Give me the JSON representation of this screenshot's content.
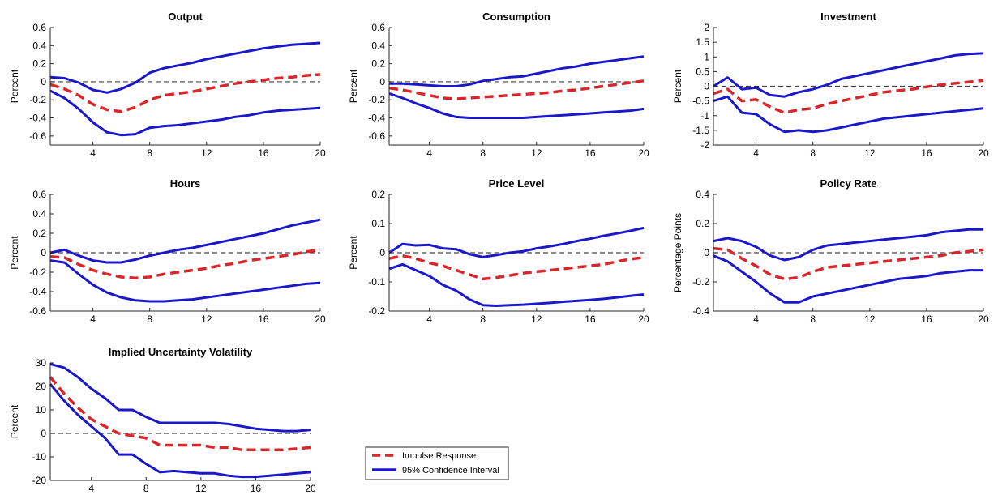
{
  "legend": {
    "impulse_label": "Impulse Response",
    "ci_label": "95% Confidence Interval"
  },
  "colors": {
    "impulse": "#d9262b",
    "ci": "#1a18c8",
    "zero": "#444444",
    "axis": "#262626"
  },
  "chart_data": [
    {
      "type": "line",
      "title": "Output",
      "ylabel": "Percent",
      "xlim": [
        1,
        20
      ],
      "ylim": [
        -0.7,
        0.6
      ],
      "yticks": [
        -0.6,
        -0.4,
        -0.2,
        0,
        0.2,
        0.4,
        0.6
      ],
      "xticks": [
        4,
        8,
        12,
        16,
        20
      ],
      "x": [
        1,
        2,
        3,
        4,
        5,
        6,
        7,
        8,
        9,
        10,
        11,
        12,
        13,
        14,
        15,
        16,
        17,
        18,
        19,
        20
      ],
      "series": [
        {
          "name": "Impulse Response",
          "role": "impulse",
          "values": [
            -0.03,
            -0.08,
            -0.15,
            -0.25,
            -0.31,
            -0.33,
            -0.28,
            -0.2,
            -0.15,
            -0.13,
            -0.11,
            -0.08,
            -0.05,
            -0.02,
            0.0,
            0.02,
            0.04,
            0.05,
            0.07,
            0.08
          ]
        },
        {
          "name": "95% Confidence Interval",
          "role": "ci",
          "values": [
            0.05,
            0.04,
            -0.01,
            -0.09,
            -0.12,
            -0.08,
            -0.01,
            0.1,
            0.15,
            0.18,
            0.21,
            0.25,
            0.28,
            0.31,
            0.34,
            0.37,
            0.39,
            0.41,
            0.42,
            0.43
          ]
        },
        {
          "name": "95% Confidence Interval",
          "role": "ci",
          "values": [
            -0.1,
            -0.18,
            -0.3,
            -0.45,
            -0.56,
            -0.59,
            -0.58,
            -0.51,
            -0.49,
            -0.48,
            -0.46,
            -0.44,
            -0.42,
            -0.39,
            -0.37,
            -0.34,
            -0.32,
            -0.31,
            -0.3,
            -0.29
          ]
        }
      ]
    },
    {
      "type": "line",
      "title": "Consumption",
      "ylabel": "Percent",
      "xlim": [
        1,
        20
      ],
      "ylim": [
        -0.7,
        0.6
      ],
      "yticks": [
        -0.6,
        -0.4,
        -0.2,
        0,
        0.2,
        0.4,
        0.6
      ],
      "xticks": [
        4,
        8,
        12,
        16,
        20
      ],
      "x": [
        1,
        2,
        3,
        4,
        5,
        6,
        7,
        8,
        9,
        10,
        11,
        12,
        13,
        14,
        15,
        16,
        17,
        18,
        19,
        20
      ],
      "series": [
        {
          "name": "Impulse Response",
          "role": "impulse",
          "values": [
            -0.07,
            -0.09,
            -0.12,
            -0.15,
            -0.18,
            -0.19,
            -0.18,
            -0.17,
            -0.16,
            -0.15,
            -0.14,
            -0.13,
            -0.12,
            -0.1,
            -0.09,
            -0.07,
            -0.05,
            -0.03,
            -0.01,
            0.01
          ]
        },
        {
          "name": "95% Confidence Interval",
          "role": "ci",
          "values": [
            -0.02,
            -0.02,
            -0.03,
            -0.04,
            -0.05,
            -0.05,
            -0.03,
            0.01,
            0.03,
            0.05,
            0.06,
            0.09,
            0.12,
            0.15,
            0.17,
            0.2,
            0.22,
            0.24,
            0.26,
            0.28
          ]
        },
        {
          "name": "95% Confidence Interval",
          "role": "ci",
          "values": [
            -0.13,
            -0.18,
            -0.24,
            -0.29,
            -0.35,
            -0.39,
            -0.4,
            -0.4,
            -0.4,
            -0.4,
            -0.4,
            -0.39,
            -0.38,
            -0.37,
            -0.36,
            -0.35,
            -0.34,
            -0.33,
            -0.32,
            -0.3
          ]
        }
      ]
    },
    {
      "type": "line",
      "title": "Investment",
      "ylabel": "Percent",
      "xlim": [
        1,
        20
      ],
      "ylim": [
        -2,
        2
      ],
      "yticks": [
        -2,
        -1.5,
        -1,
        -0.5,
        0,
        0.5,
        1,
        1.5,
        2
      ],
      "xticks": [
        4,
        8,
        12,
        16,
        20
      ],
      "x": [
        1,
        2,
        3,
        4,
        5,
        6,
        7,
        8,
        9,
        10,
        11,
        12,
        13,
        14,
        15,
        16,
        17,
        18,
        19,
        20
      ],
      "series": [
        {
          "name": "Impulse Response",
          "role": "impulse",
          "values": [
            -0.25,
            -0.1,
            -0.5,
            -0.45,
            -0.7,
            -0.9,
            -0.8,
            -0.75,
            -0.6,
            -0.5,
            -0.4,
            -0.3,
            -0.2,
            -0.15,
            -0.1,
            -0.02,
            0.05,
            0.1,
            0.15,
            0.2
          ]
        },
        {
          "name": "95% Confidence Interval",
          "role": "ci",
          "values": [
            0.0,
            0.3,
            -0.1,
            -0.05,
            -0.3,
            -0.35,
            -0.2,
            -0.1,
            0.05,
            0.25,
            0.35,
            0.45,
            0.55,
            0.65,
            0.75,
            0.85,
            0.95,
            1.05,
            1.1,
            1.12
          ]
        },
        {
          "name": "95% Confidence Interval",
          "role": "ci",
          "values": [
            -0.5,
            -0.35,
            -0.9,
            -0.95,
            -1.3,
            -1.55,
            -1.5,
            -1.55,
            -1.5,
            -1.4,
            -1.3,
            -1.2,
            -1.1,
            -1.05,
            -1.0,
            -0.95,
            -0.9,
            -0.85,
            -0.8,
            -0.75
          ]
        }
      ]
    },
    {
      "type": "line",
      "title": "Hours",
      "ylabel": "Percent",
      "xlim": [
        1,
        20
      ],
      "ylim": [
        -0.6,
        0.6
      ],
      "yticks": [
        -0.6,
        -0.4,
        -0.2,
        0,
        0.2,
        0.4,
        0.6
      ],
      "xticks": [
        4,
        8,
        12,
        16,
        20
      ],
      "x": [
        1,
        2,
        3,
        4,
        5,
        6,
        7,
        8,
        9,
        10,
        11,
        12,
        13,
        14,
        15,
        16,
        17,
        18,
        19,
        20
      ],
      "series": [
        {
          "name": "Impulse Response",
          "role": "impulse",
          "values": [
            -0.04,
            -0.05,
            -0.12,
            -0.18,
            -0.22,
            -0.25,
            -0.26,
            -0.25,
            -0.22,
            -0.2,
            -0.18,
            -0.16,
            -0.13,
            -0.11,
            -0.08,
            -0.06,
            -0.04,
            -0.02,
            0.01,
            0.03
          ]
        },
        {
          "name": "95% Confidence Interval",
          "role": "ci",
          "values": [
            0.0,
            0.03,
            -0.03,
            -0.08,
            -0.1,
            -0.1,
            -0.07,
            -0.03,
            0.0,
            0.03,
            0.05,
            0.08,
            0.11,
            0.14,
            0.17,
            0.2,
            0.24,
            0.28,
            0.31,
            0.34
          ]
        },
        {
          "name": "95% Confidence Interval",
          "role": "ci",
          "values": [
            -0.08,
            -0.1,
            -0.22,
            -0.33,
            -0.41,
            -0.46,
            -0.49,
            -0.5,
            -0.5,
            -0.49,
            -0.48,
            -0.46,
            -0.44,
            -0.42,
            -0.4,
            -0.38,
            -0.36,
            -0.34,
            -0.32,
            -0.31
          ]
        }
      ]
    },
    {
      "type": "line",
      "title": "Price Level",
      "ylabel": "Percent",
      "xlim": [
        1,
        20
      ],
      "ylim": [
        -0.2,
        0.2
      ],
      "yticks": [
        -0.2,
        -0.1,
        0,
        0.1,
        0.2
      ],
      "xticks": [
        4,
        8,
        12,
        16,
        20
      ],
      "x": [
        1,
        2,
        3,
        4,
        5,
        6,
        7,
        8,
        9,
        10,
        11,
        12,
        13,
        14,
        15,
        16,
        17,
        18,
        19,
        20
      ],
      "series": [
        {
          "name": "Impulse Response",
          "role": "impulse",
          "values": [
            -0.02,
            -0.01,
            -0.02,
            -0.035,
            -0.045,
            -0.06,
            -0.075,
            -0.09,
            -0.085,
            -0.078,
            -0.07,
            -0.065,
            -0.06,
            -0.055,
            -0.05,
            -0.045,
            -0.04,
            -0.03,
            -0.022,
            -0.016
          ]
        },
        {
          "name": "95% Confidence Interval",
          "role": "ci",
          "values": [
            0.0,
            0.03,
            0.025,
            0.027,
            0.015,
            0.012,
            -0.005,
            -0.015,
            -0.008,
            0.0,
            0.005,
            0.015,
            0.022,
            0.03,
            0.04,
            0.048,
            0.058,
            0.066,
            0.075,
            0.085
          ]
        },
        {
          "name": "95% Confidence Interval",
          "role": "ci",
          "values": [
            -0.055,
            -0.04,
            -0.06,
            -0.08,
            -0.11,
            -0.13,
            -0.16,
            -0.18,
            -0.182,
            -0.18,
            -0.178,
            -0.175,
            -0.172,
            -0.168,
            -0.165,
            -0.162,
            -0.158,
            -0.153,
            -0.148,
            -0.143
          ]
        }
      ]
    },
    {
      "type": "line",
      "title": "Policy Rate",
      "ylabel": "Percentage Points",
      "xlim": [
        1,
        20
      ],
      "ylim": [
        -0.4,
        0.4
      ],
      "yticks": [
        -0.4,
        -0.2,
        0,
        0.2,
        0.4
      ],
      "xticks": [
        4,
        8,
        12,
        16,
        20
      ],
      "x": [
        1,
        2,
        3,
        4,
        5,
        6,
        7,
        8,
        9,
        10,
        11,
        12,
        13,
        14,
        15,
        16,
        17,
        18,
        19,
        20
      ],
      "series": [
        {
          "name": "Impulse Response",
          "role": "impulse",
          "values": [
            0.03,
            0.02,
            -0.04,
            -0.09,
            -0.15,
            -0.18,
            -0.17,
            -0.13,
            -0.1,
            -0.09,
            -0.08,
            -0.07,
            -0.06,
            -0.05,
            -0.04,
            -0.03,
            -0.02,
            0.0,
            0.01,
            0.02
          ]
        },
        {
          "name": "95% Confidence Interval",
          "role": "ci",
          "values": [
            0.08,
            0.1,
            0.08,
            0.04,
            -0.02,
            -0.05,
            -0.03,
            0.02,
            0.05,
            0.06,
            0.07,
            0.08,
            0.09,
            0.1,
            0.11,
            0.12,
            0.14,
            0.15,
            0.16,
            0.16
          ]
        },
        {
          "name": "95% Confidence Interval",
          "role": "ci",
          "values": [
            -0.02,
            -0.06,
            -0.13,
            -0.2,
            -0.28,
            -0.34,
            -0.34,
            -0.3,
            -0.28,
            -0.26,
            -0.24,
            -0.22,
            -0.2,
            -0.18,
            -0.17,
            -0.16,
            -0.14,
            -0.13,
            -0.12,
            -0.12
          ]
        }
      ]
    },
    {
      "type": "line",
      "title": "Implied Uncertainty Volatility",
      "ylabel": "Percent",
      "xlim": [
        1,
        20
      ],
      "ylim": [
        -20,
        30
      ],
      "yticks": [
        -20,
        -10,
        0,
        10,
        20,
        30
      ],
      "xticks": [
        4,
        8,
        12,
        16,
        20
      ],
      "x": [
        1,
        2,
        3,
        4,
        5,
        6,
        7,
        8,
        9,
        10,
        11,
        12,
        13,
        14,
        15,
        16,
        17,
        18,
        19,
        20
      ],
      "series": [
        {
          "name": "Impulse Response",
          "role": "impulse",
          "values": [
            24,
            17,
            11,
            6,
            3,
            0,
            -1,
            -2,
            -5,
            -5,
            -5,
            -5,
            -6,
            -6,
            -7,
            -7,
            -7,
            -7,
            -6.5,
            -6
          ]
        },
        {
          "name": "95% Confidence Interval",
          "role": "ci",
          "values": [
            29.5,
            28,
            24,
            19,
            15,
            10,
            10,
            7,
            4.5,
            4.5,
            4.5,
            4.5,
            4.5,
            4,
            3,
            2,
            1.5,
            1,
            1,
            1.5
          ]
        },
        {
          "name": "95% Confidence Interval",
          "role": "ci",
          "values": [
            21,
            14,
            8,
            3,
            -2,
            -9,
            -9,
            -13,
            -16.5,
            -16,
            -16.5,
            -17,
            -17,
            -18,
            -18.5,
            -18.5,
            -18,
            -17.5,
            -17,
            -16.5
          ]
        }
      ]
    }
  ]
}
